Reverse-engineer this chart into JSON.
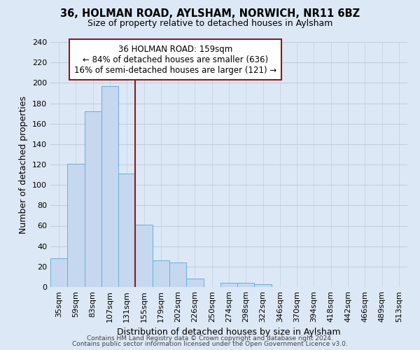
{
  "title": "36, HOLMAN ROAD, AYLSHAM, NORWICH, NR11 6BZ",
  "subtitle": "Size of property relative to detached houses in Aylsham",
  "xlabel": "Distribution of detached houses by size in Aylsham",
  "ylabel": "Number of detached properties",
  "bar_labels": [
    "35sqm",
    "59sqm",
    "83sqm",
    "107sqm",
    "131sqm",
    "155sqm",
    "179sqm",
    "202sqm",
    "226sqm",
    "250sqm",
    "274sqm",
    "298sqm",
    "322sqm",
    "346sqm",
    "370sqm",
    "394sqm",
    "418sqm",
    "442sqm",
    "466sqm",
    "489sqm",
    "513sqm"
  ],
  "bar_values": [
    28,
    121,
    172,
    197,
    111,
    61,
    26,
    24,
    8,
    0,
    4,
    4,
    3,
    0,
    0,
    0,
    0,
    0,
    0,
    0,
    0
  ],
  "bar_color": "#c5d8f0",
  "bar_edge_color": "#6baed6",
  "property_line_color": "#8b1a1a",
  "annotation_text": "36 HOLMAN ROAD: 159sqm\n← 84% of detached houses are smaller (636)\n16% of semi-detached houses are larger (121) →",
  "annotation_box_color": "white",
  "annotation_box_edge_color": "#8b1a1a",
  "ylim": [
    0,
    240
  ],
  "yticks": [
    0,
    20,
    40,
    60,
    80,
    100,
    120,
    140,
    160,
    180,
    200,
    220,
    240
  ],
  "footer_line1": "Contains HM Land Registry data © Crown copyright and database right 2024.",
  "footer_line2": "Contains public sector information licensed under the Open Government Licence v3.0.",
  "background_color": "#dce8f5",
  "plot_bg_color": "#dce8f5",
  "grid_color": "#c0cfe0"
}
